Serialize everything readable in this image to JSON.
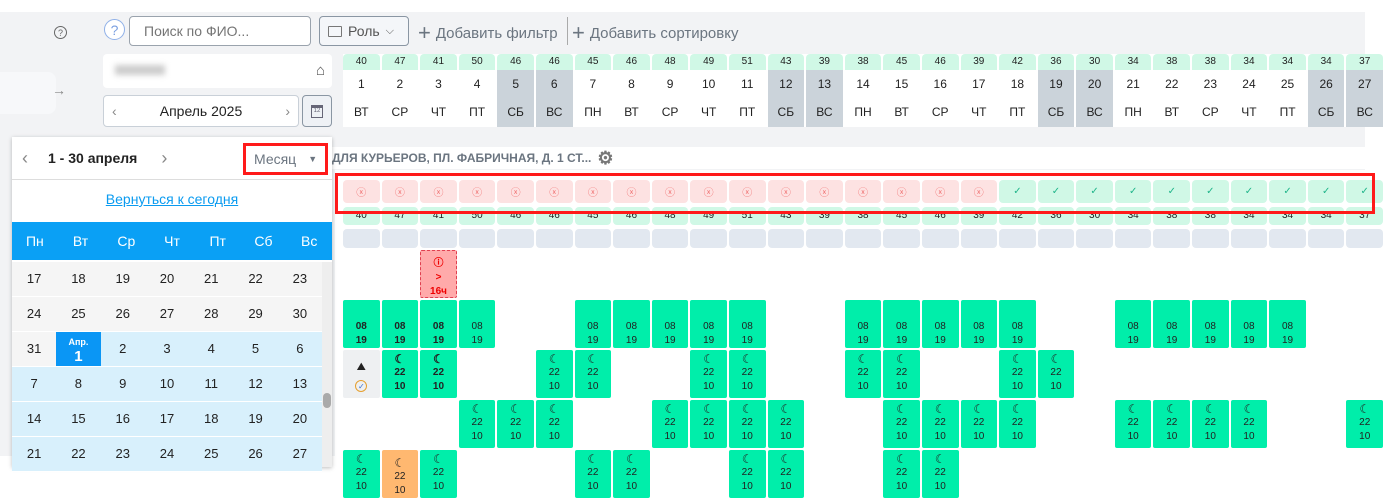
{
  "toolbar": {
    "help_icon": "question-circle-icon",
    "search_placeholder": "Поиск по ФИО...",
    "role_label": "Роль",
    "add_filter": "Добавить фильтр",
    "add_sort": "Добавить сортировку"
  },
  "sidebar": {
    "help_icon": "question-circle-icon",
    "expand_icon": "arrow-right-icon"
  },
  "month_nav": {
    "label": "Апрель 2025"
  },
  "days": [
    {
      "count": 40,
      "day": 1,
      "dow": "ВТ",
      "weekend": false
    },
    {
      "count": 47,
      "day": 2,
      "dow": "СР",
      "weekend": false
    },
    {
      "count": 41,
      "day": 3,
      "dow": "ЧТ",
      "weekend": false
    },
    {
      "count": 50,
      "day": 4,
      "dow": "ПТ",
      "weekend": false
    },
    {
      "count": 46,
      "day": 5,
      "dow": "СБ",
      "weekend": true
    },
    {
      "count": 46,
      "day": 6,
      "dow": "ВС",
      "weekend": true
    },
    {
      "count": 45,
      "day": 7,
      "dow": "ПН",
      "weekend": false
    },
    {
      "count": 46,
      "day": 8,
      "dow": "ВТ",
      "weekend": false
    },
    {
      "count": 48,
      "day": 9,
      "dow": "СР",
      "weekend": false
    },
    {
      "count": 49,
      "day": 10,
      "dow": "ЧТ",
      "weekend": false
    },
    {
      "count": 51,
      "day": 11,
      "dow": "ПТ",
      "weekend": false
    },
    {
      "count": 43,
      "day": 12,
      "dow": "СБ",
      "weekend": true
    },
    {
      "count": 39,
      "day": 13,
      "dow": "ВС",
      "weekend": true
    },
    {
      "count": 38,
      "day": 14,
      "dow": "ПН",
      "weekend": false
    },
    {
      "count": 45,
      "day": 15,
      "dow": "ВТ",
      "weekend": false
    },
    {
      "count": 46,
      "day": 16,
      "dow": "СР",
      "weekend": false
    },
    {
      "count": 39,
      "day": 17,
      "dow": "ЧТ",
      "weekend": false
    },
    {
      "count": 42,
      "day": 18,
      "dow": "ПТ",
      "weekend": false
    },
    {
      "count": 36,
      "day": 19,
      "dow": "СБ",
      "weekend": true
    },
    {
      "count": 30,
      "day": 20,
      "dow": "ВС",
      "weekend": true
    },
    {
      "count": 34,
      "day": 21,
      "dow": "ПН",
      "weekend": false
    },
    {
      "count": 38,
      "day": 22,
      "dow": "ВТ",
      "weekend": false
    },
    {
      "count": 38,
      "day": 23,
      "dow": "СР",
      "weekend": false
    },
    {
      "count": 34,
      "day": 24,
      "dow": "ЧТ",
      "weekend": false
    },
    {
      "count": 34,
      "day": 25,
      "dow": "ПТ",
      "weekend": false
    },
    {
      "count": 34,
      "day": 26,
      "dow": "СБ",
      "weekend": true
    },
    {
      "count": 37,
      "day": 27,
      "dow": "ВС",
      "weekend": true
    }
  ],
  "location_title": "ДЛЯ КУРЬЕРОВ, ПЛ. ФАБРИЧНАЯ, Д. 1 СТ...",
  "status_row": [
    "bad",
    "bad",
    "bad",
    "bad",
    "bad",
    "bad",
    "bad",
    "bad",
    "bad",
    "bad",
    "bad",
    "bad",
    "bad",
    "bad",
    "bad",
    "bad",
    "bad",
    "ok",
    "ok",
    "ok",
    "ok",
    "ok",
    "ok",
    "ok",
    "ok",
    "ok",
    "ok"
  ],
  "shifts": {
    "warning_text": [
      "!",
      ">",
      "16ч"
    ],
    "day_times": [
      "08",
      "19"
    ],
    "night_times": [
      "22",
      "10"
    ],
    "rows": [
      [
        "",
        "",
        "warn",
        "",
        "",
        "",
        "",
        "",
        "",
        "",
        "",
        "",
        "",
        "",
        "",
        "",
        "",
        "",
        "",
        "",
        "",
        "",
        "",
        "",
        "",
        "",
        ""
      ],
      [
        "dayb",
        "dayb",
        "dayb",
        "day",
        "",
        "",
        "day",
        "day",
        "day",
        "day",
        "day",
        "",
        "",
        "day",
        "day",
        "day",
        "day",
        "day",
        "",
        "",
        "day",
        "day",
        "day",
        "day",
        "day",
        "",
        ""
      ],
      [
        "icons",
        "nightb",
        "nightb",
        "",
        "",
        "night",
        "night",
        "",
        "",
        "night",
        "night",
        "",
        "",
        "night",
        "night",
        "",
        "",
        "night",
        "night",
        "",
        "",
        "",
        "",
        "",
        "",
        "",
        ""
      ],
      [
        "",
        "",
        "",
        "night",
        "night",
        "night",
        "",
        "",
        "night",
        "night",
        "night",
        "night",
        "",
        "",
        "night",
        "night",
        "night",
        "night",
        "",
        "",
        "night",
        "night",
        "night",
        "night",
        "",
        "",
        "night"
      ],
      [
        "night",
        "orange",
        "night",
        "",
        "",
        "",
        "night",
        "night",
        "",
        "",
        "night",
        "night",
        "",
        "",
        "night",
        "night",
        "",
        "",
        "",
        "",
        "",
        "",
        "",
        "",
        "",
        "",
        ""
      ]
    ]
  },
  "picker": {
    "range": "1 - 30 апреля",
    "mode": "Месяц",
    "today_link": "Вернуться к сегодня",
    "weekdays": [
      "Пн",
      "Вт",
      "Ср",
      "Чт",
      "Пт",
      "Сб",
      "Вс"
    ],
    "selected_label": "Апр.",
    "weeks": [
      {
        "type": "prev",
        "days": [
          "17",
          "18",
          "19",
          "20",
          "21",
          "22",
          "23"
        ]
      },
      {
        "type": "prev",
        "days": [
          "24",
          "25",
          "26",
          "27",
          "28",
          "29",
          "30"
        ]
      },
      {
        "type": "mixed",
        "days": [
          "31",
          "1",
          "2",
          "3",
          "4",
          "5",
          "6"
        ]
      },
      {
        "type": "cur",
        "days": [
          "7",
          "8",
          "9",
          "10",
          "11",
          "12",
          "13"
        ]
      },
      {
        "type": "cur",
        "days": [
          "14",
          "15",
          "16",
          "17",
          "18",
          "19",
          "20"
        ]
      },
      {
        "type": "cur",
        "days": [
          "21",
          "22",
          "23",
          "24",
          "25",
          "26",
          "27"
        ]
      }
    ]
  },
  "colors": {
    "shift": "#00eeaa",
    "accent": "#0aa0f5",
    "warning": "#ffaaaa",
    "highlight": "#ff1a1a"
  }
}
